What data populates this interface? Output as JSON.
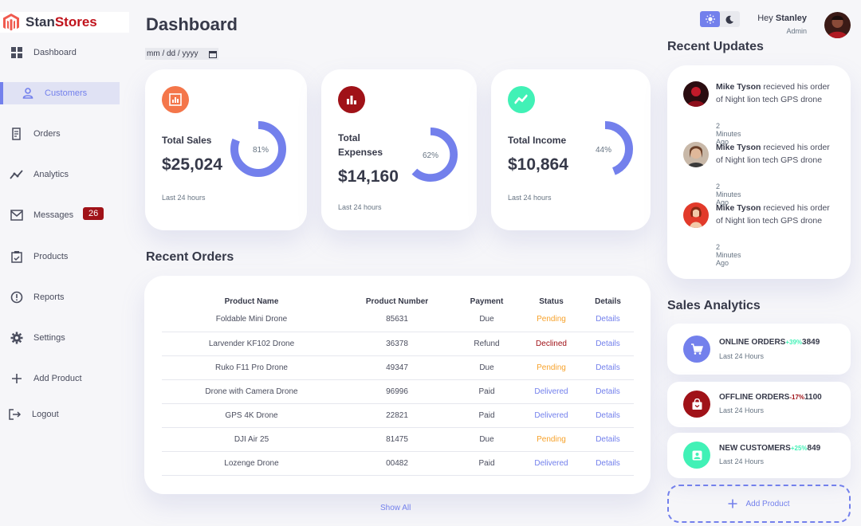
{
  "brand": {
    "part1": "Stan",
    "part2": "Stores"
  },
  "sidebar": {
    "items": [
      {
        "label": "Dashboard",
        "icon": "grid-icon"
      },
      {
        "label": "Customers",
        "icon": "person-icon"
      },
      {
        "label": "Orders",
        "icon": "receipt-icon"
      },
      {
        "label": "Analytics",
        "icon": "insights-icon"
      },
      {
        "label": "Messages",
        "icon": "mail-icon",
        "badge": "26"
      },
      {
        "label": "Products",
        "icon": "inventory-icon"
      },
      {
        "label": "Reports",
        "icon": "report-icon"
      },
      {
        "label": "Settings",
        "icon": "gear-icon"
      },
      {
        "label": "Add Product",
        "icon": "plus-icon"
      },
      {
        "label": "Logout",
        "icon": "logout-icon"
      }
    ]
  },
  "header": {
    "title": "Dashboard",
    "date_placeholder": "mm / dd / yyyy"
  },
  "kpis": [
    {
      "label": "Total Sales",
      "value": "$25,024",
      "percent": 81,
      "percent_label": "81%",
      "foot": "Last 24 hours",
      "color": "#f4764a",
      "icon": "chart-icon"
    },
    {
      "label": "Total Expenses",
      "value": "$14,160",
      "percent": 62,
      "percent_label": "62%",
      "foot": "Last 24 hours",
      "color": "#a01218",
      "icon": "bar-chart-icon"
    },
    {
      "label": "Total Income",
      "value": "$10,864",
      "percent": 44,
      "percent_label": "44%",
      "foot": "Last 24 hours",
      "color": "#41f1b6",
      "icon": "stocks-icon"
    }
  ],
  "orders": {
    "title": "Recent Orders",
    "columns": [
      "Product Name",
      "Product Number",
      "Payment",
      "Status",
      "Details"
    ],
    "rows": [
      [
        "Foldable Mini Drone",
        "85631",
        "Due",
        "Pending",
        "Details"
      ],
      [
        "Larvender KF102 Drone",
        "36378",
        "Refund",
        "Declined",
        "Details"
      ],
      [
        "Ruko F11 Pro Drone",
        "49347",
        "Due",
        "Pending",
        "Details"
      ],
      [
        "Drone with Camera Drone",
        "96996",
        "Paid",
        "Delivered",
        "Details"
      ],
      [
        "GPS 4K Drone",
        "22821",
        "Paid",
        "Delivered",
        "Details"
      ],
      [
        "DJI Air 25",
        "81475",
        "Due",
        "Pending",
        "Details"
      ],
      [
        "Lozenge Drone",
        "00482",
        "Paid",
        "Delivered",
        "Details"
      ]
    ],
    "show_all": "Show All"
  },
  "profile": {
    "greeting": "Hey",
    "name": "Stanley",
    "role": "Admin"
  },
  "updates": {
    "title": "Recent Updates",
    "items": [
      {
        "name": "Mike Tyson",
        "text": " recieved his order of Night lion tech GPS drone",
        "time": "2 Minutes Ago"
      },
      {
        "name": "Mike Tyson",
        "text": " recieved his order of Night lion tech GPS drone",
        "time": "2 Minutes Ago"
      },
      {
        "name": "Mike Tyson",
        "text": " recieved his order of Night lion tech GPS drone",
        "time": "2 Minutes Ago"
      }
    ]
  },
  "sales_analytics": {
    "title": "Sales Analytics",
    "items": [
      {
        "title": "ONLINE ORDERS",
        "pct": "+39%",
        "value": "3849",
        "foot": "Last 24 Hours",
        "color": "#7380ec",
        "pct_color": "#41f1b6"
      },
      {
        "title": "OFFLINE ORDERS",
        "pct": "-17%",
        "value": "1100",
        "foot": "Last 24 Hours",
        "color": "#a01218",
        "pct_color": "#a01218"
      },
      {
        "title": "NEW CUSTOMERS",
        "pct": "+25%",
        "value": "849",
        "foot": "Last 24 Hours",
        "color": "#41f1b6",
        "pct_color": "#41f1b6"
      }
    ],
    "add_label": "Add Product"
  }
}
